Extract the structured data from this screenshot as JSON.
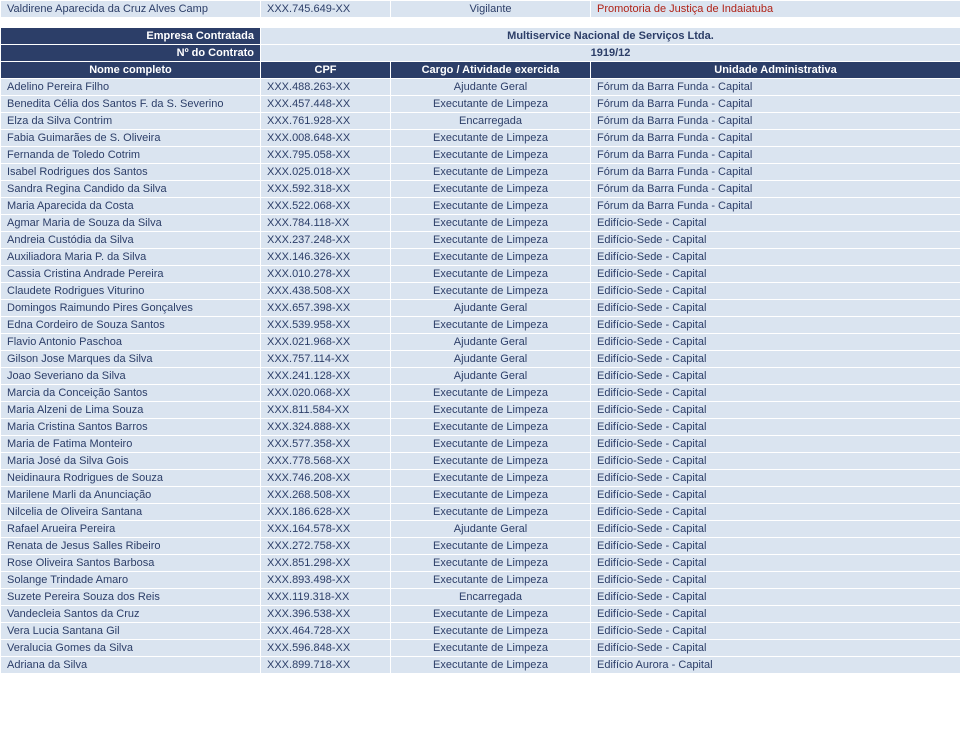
{
  "colors": {
    "header_bg": "#2c3e68",
    "header_fg": "#ffffff",
    "cell_bg": "#dae4f0",
    "cell_fg": "#2c3e68",
    "red_fg": "#b02318",
    "border": "#ffffff"
  },
  "topRow": {
    "name": "Valdirene Aparecida da Cruz Alves Camp",
    "cpf": "XXX.745.649-XX",
    "cargo": "Vigilante",
    "unit": "Promotoria de Justiça de Indaiatuba"
  },
  "contractHeader": {
    "empresaLabel": "Empresa Contratada",
    "empresaValue": "Multiservice Nacional de Serviços Ltda.",
    "numeroLabel": "Nº do Contrato",
    "numeroValue": "1919/12"
  },
  "columns": {
    "name": "Nome completo",
    "cpf": "CPF",
    "cargo": "Cargo / Atividade exercida",
    "unit": "Unidade Administrativa"
  },
  "rows": [
    {
      "name": "Adelino Pereira Filho",
      "cpf": "XXX.488.263-XX",
      "cargo": "Ajudante Geral",
      "unit": "Fórum da Barra Funda - Capital"
    },
    {
      "name": "Benedita Célia dos Santos F. da S. Severino",
      "cpf": "XXX.457.448-XX",
      "cargo": "Executante de Limpeza",
      "unit": "Fórum da Barra Funda - Capital"
    },
    {
      "name": "Elza da Silva Contrim",
      "cpf": "XXX.761.928-XX",
      "cargo": "Encarregada",
      "unit": "Fórum da Barra Funda - Capital"
    },
    {
      "name": "Fabia Guimarães de S. Oliveira",
      "cpf": "XXX.008.648-XX",
      "cargo": "Executante de Limpeza",
      "unit": "Fórum da Barra Funda - Capital"
    },
    {
      "name": "Fernanda de Toledo Cotrim",
      "cpf": "XXX.795.058-XX",
      "cargo": "Executante de Limpeza",
      "unit": "Fórum da Barra Funda - Capital"
    },
    {
      "name": "Isabel Rodrigues dos Santos",
      "cpf": "XXX.025.018-XX",
      "cargo": "Executante de Limpeza",
      "unit": "Fórum da Barra Funda - Capital"
    },
    {
      "name": "Sandra Regina Candido da Silva",
      "cpf": "XXX.592.318-XX",
      "cargo": "Executante de Limpeza",
      "unit": "Fórum da Barra Funda - Capital"
    },
    {
      "name": "Maria Aparecida da Costa",
      "cpf": "XXX.522.068-XX",
      "cargo": "Executante de Limpeza",
      "unit": "Fórum da Barra Funda - Capital"
    },
    {
      "name": "Agmar Maria de Souza da Silva",
      "cpf": "XXX.784.118-XX",
      "cargo": "Executante de Limpeza",
      "unit": "Edifício-Sede - Capital"
    },
    {
      "name": "Andreia Custódia da Silva",
      "cpf": "XXX.237.248-XX",
      "cargo": "Executante de Limpeza",
      "unit": "Edifício-Sede - Capital"
    },
    {
      "name": "Auxiliadora Maria P. da Silva",
      "cpf": "XXX.146.326-XX",
      "cargo": "Executante de Limpeza",
      "unit": "Edifício-Sede - Capital"
    },
    {
      "name": "Cassia Cristina Andrade Pereira",
      "cpf": "XXX.010.278-XX",
      "cargo": "Executante de Limpeza",
      "unit": "Edifício-Sede - Capital"
    },
    {
      "name": "Claudete Rodrigues Viturino",
      "cpf": "XXX.438.508-XX",
      "cargo": "Executante de Limpeza",
      "unit": "Edifício-Sede - Capital"
    },
    {
      "name": "Domingos Raimundo Pires Gonçalves",
      "cpf": "XXX.657.398-XX",
      "cargo": "Ajudante Geral",
      "unit": "Edifício-Sede - Capital"
    },
    {
      "name": "Edna Cordeiro de Souza Santos",
      "cpf": "XXX.539.958-XX",
      "cargo": "Executante de Limpeza",
      "unit": "Edifício-Sede - Capital"
    },
    {
      "name": "Flavio Antonio Paschoa",
      "cpf": "XXX.021.968-XX",
      "cargo": "Ajudante Geral",
      "unit": "Edifício-Sede - Capital"
    },
    {
      "name": "Gilson Jose Marques da Silva",
      "cpf": "XXX.757.114-XX",
      "cargo": "Ajudante Geral",
      "unit": "Edifício-Sede - Capital"
    },
    {
      "name": "Joao Severiano da Silva",
      "cpf": "XXX.241.128-XX",
      "cargo": "Ajudante Geral",
      "unit": "Edifício-Sede - Capital"
    },
    {
      "name": "Marcia da Conceição Santos",
      "cpf": "XXX.020.068-XX",
      "cargo": "Executante de Limpeza",
      "unit": "Edifício-Sede - Capital"
    },
    {
      "name": "Maria Alzeni de Lima Souza",
      "cpf": "XXX.811.584-XX",
      "cargo": "Executante de Limpeza",
      "unit": "Edifício-Sede - Capital"
    },
    {
      "name": "Maria Cristina Santos Barros",
      "cpf": "XXX.324.888-XX",
      "cargo": "Executante de Limpeza",
      "unit": "Edifício-Sede - Capital"
    },
    {
      "name": "Maria de Fatima Monteiro",
      "cpf": "XXX.577.358-XX",
      "cargo": "Executante de Limpeza",
      "unit": "Edifício-Sede - Capital"
    },
    {
      "name": "Maria José da Silva Gois",
      "cpf": "XXX.778.568-XX",
      "cargo": "Executante de Limpeza",
      "unit": "Edifício-Sede - Capital"
    },
    {
      "name": "Neidinaura Rodrigues de Souza",
      "cpf": "XXX.746.208-XX",
      "cargo": "Executante de Limpeza",
      "unit": "Edifício-Sede - Capital"
    },
    {
      "name": "Marilene Marli da Anunciação",
      "cpf": "XXX.268.508-XX",
      "cargo": "Executante de Limpeza",
      "unit": "Edifício-Sede - Capital"
    },
    {
      "name": "Nilcelia de Oliveira Santana",
      "cpf": "XXX.186.628-XX",
      "cargo": "Executante de Limpeza",
      "unit": "Edifício-Sede - Capital"
    },
    {
      "name": "Rafael Arueira Pereira",
      "cpf": "XXX.164.578-XX",
      "cargo": "Ajudante Geral",
      "unit": "Edifício-Sede - Capital"
    },
    {
      "name": "Renata de Jesus Salles Ribeiro",
      "cpf": "XXX.272.758-XX",
      "cargo": "Executante de Limpeza",
      "unit": "Edifício-Sede - Capital"
    },
    {
      "name": "Rose Oliveira Santos Barbosa",
      "cpf": "XXX.851.298-XX",
      "cargo": "Executante de Limpeza",
      "unit": "Edifício-Sede - Capital"
    },
    {
      "name": "Solange Trindade Amaro",
      "cpf": "XXX.893.498-XX",
      "cargo": "Executante de Limpeza",
      "unit": "Edifício-Sede - Capital"
    },
    {
      "name": "Suzete Pereira Souza dos Reis",
      "cpf": "XXX.119.318-XX",
      "cargo": "Encarregada",
      "unit": "Edifício-Sede - Capital"
    },
    {
      "name": "Vandecleia Santos da Cruz",
      "cpf": "XXX.396.538-XX",
      "cargo": "Executante de Limpeza",
      "unit": "Edifício-Sede - Capital"
    },
    {
      "name": "Vera Lucia Santana Gil",
      "cpf": "XXX.464.728-XX",
      "cargo": "Executante de Limpeza",
      "unit": "Edifício-Sede - Capital"
    },
    {
      "name": "Veralucia Gomes da Silva",
      "cpf": "XXX.596.848-XX",
      "cargo": "Executante de Limpeza",
      "unit": "Edifício-Sede - Capital"
    },
    {
      "name": "Adriana da Silva",
      "cpf": "XXX.899.718-XX",
      "cargo": "Executante de Limpeza",
      "unit": "Edifício Aurora - Capital"
    }
  ]
}
